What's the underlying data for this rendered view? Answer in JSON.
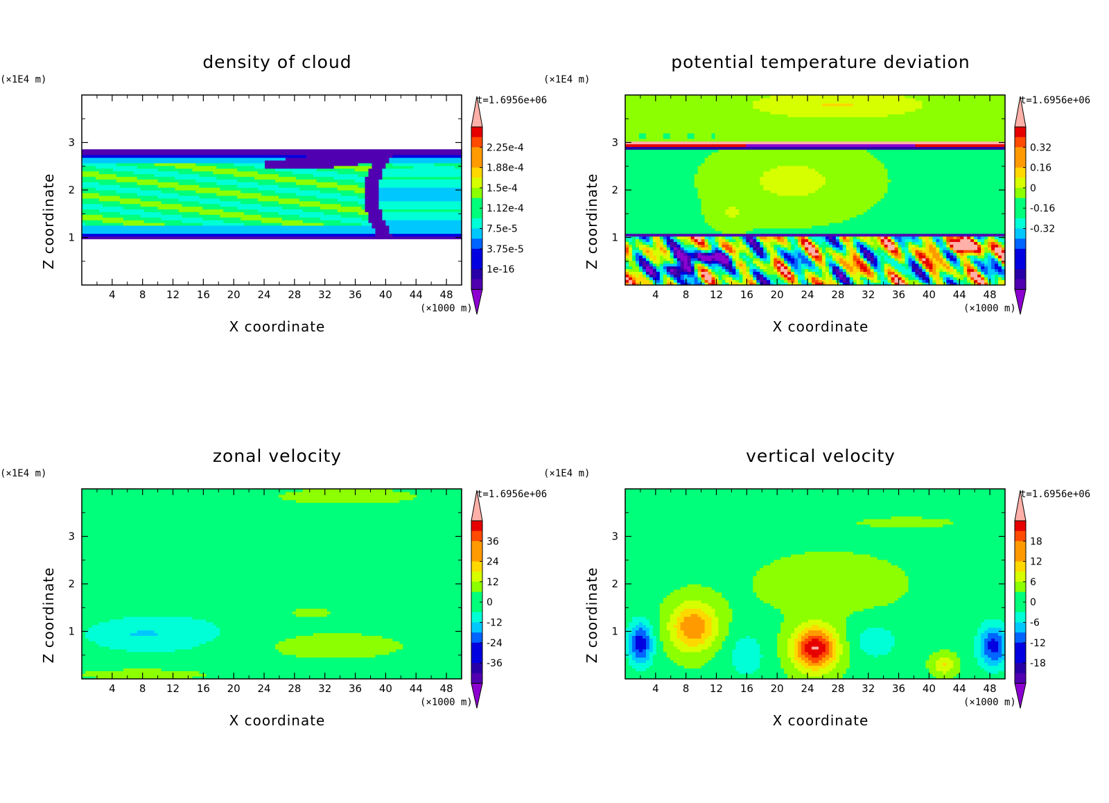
{
  "chart_data": [
    {
      "type": "heatmap",
      "title": "density of cloud",
      "xlabel": "X coordinate",
      "ylabel": "Z coordinate",
      "x_unit": "(×1000 m)",
      "y_unit": "(×1E4 m)",
      "time_label": "t=1.6956e+06",
      "x_ticks": [
        4,
        8,
        12,
        16,
        20,
        24,
        28,
        32,
        36,
        40,
        44,
        48
      ],
      "y_ticks": [
        1,
        2,
        3
      ],
      "xlim": [
        0,
        50
      ],
      "ylim": [
        0,
        4
      ],
      "colorbar_labels": [
        "2.25e-4",
        "1.88e-4",
        "1.5e-4",
        "1.12e-4",
        "7.5e-5",
        "3.75e-5",
        "1e-16"
      ],
      "field": "cloud"
    },
    {
      "type": "heatmap",
      "title": "potential temperature deviation",
      "xlabel": "X coordinate",
      "ylabel": "Z coordinate",
      "x_unit": "(×1000 m)",
      "y_unit": "(×1E4 m)",
      "time_label": "t=1.6956e+06",
      "x_ticks": [
        4,
        8,
        12,
        16,
        20,
        24,
        28,
        32,
        36,
        40,
        44,
        48
      ],
      "y_ticks": [
        1,
        2,
        3
      ],
      "xlim": [
        0,
        50
      ],
      "ylim": [
        0,
        4
      ],
      "colorbar_labels": [
        "0.32",
        "0.16",
        "0",
        "-0.16",
        "-0.32"
      ],
      "field": "theta"
    },
    {
      "type": "heatmap",
      "title": "zonal velocity",
      "xlabel": "X coordinate",
      "ylabel": "Z coordinate",
      "x_unit": "(×1000 m)",
      "y_unit": "(×1E4 m)",
      "time_label": "t=1.6956e+06",
      "x_ticks": [
        4,
        8,
        12,
        16,
        20,
        24,
        28,
        32,
        36,
        40,
        44,
        48
      ],
      "y_ticks": [
        1,
        2,
        3
      ],
      "xlim": [
        0,
        50
      ],
      "ylim": [
        0,
        4
      ],
      "colorbar_labels": [
        "36",
        "24",
        "12",
        "0",
        "-12",
        "-24",
        "-36"
      ],
      "field": "u"
    },
    {
      "type": "heatmap",
      "title": "vertical velocity",
      "xlabel": "X coordinate",
      "ylabel": "Z coordinate",
      "x_unit": "(×1000 m)",
      "y_unit": "(×1E4 m)",
      "time_label": "t=1.6956e+06",
      "x_ticks": [
        4,
        8,
        12,
        16,
        20,
        24,
        28,
        32,
        36,
        40,
        44,
        48
      ],
      "y_ticks": [
        1,
        2,
        3
      ],
      "xlim": [
        0,
        50
      ],
      "ylim": [
        0,
        4
      ],
      "colorbar_labels": [
        "18",
        "12",
        "6",
        "0",
        "-6",
        "-12",
        "-18"
      ],
      "field": "w"
    }
  ],
  "colors": {
    "palette": [
      "#ffb0a8",
      "#e60000",
      "#ff4a00",
      "#ff9a00",
      "#ffd800",
      "#d6ff00",
      "#8cff00",
      "#00ff7a",
      "#00ffd6",
      "#00c8ff",
      "#0064ff",
      "#0000e0",
      "#2800a8",
      "#5000b0",
      "#8c00d0"
    ],
    "background": "#ffffff"
  }
}
